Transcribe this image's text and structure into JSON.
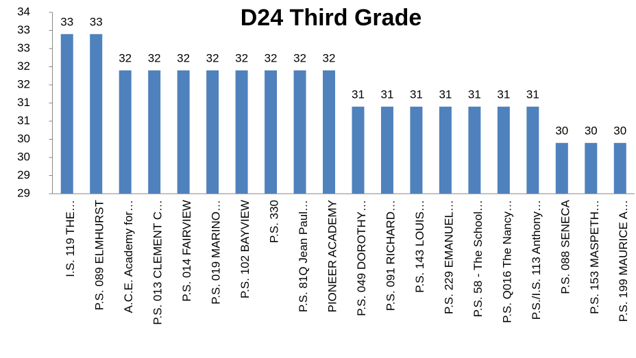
{
  "chart_data": {
    "type": "bar",
    "title": "D24 Third Grade",
    "categories": [
      "I.S. 119 THE…",
      "P.S. 089 ELMHURST",
      "A.C.E. Academy for…",
      "P.S. 013 CLEMENT C…",
      "P.S. 014 FAIRVIEW",
      "P.S. 019 MARINO…",
      "P.S. 102 BAYVIEW",
      "P.S. 330",
      "P.S. 81Q Jean Paul…",
      "PIONEER ACADEMY",
      "P.S. 049 DOROTHY…",
      "P.S. 091 RICHARD…",
      "P.S. 143 LOUIS…",
      "P.S. 229 EMANUEL…",
      "P.S. 58 - The School…",
      "P.S. Q016 The Nancy…",
      "P.S./I.S. 113 Anthony…",
      "P.S. 088 SENECA",
      "P.S. 153 MASPETH…",
      "P.S. 199 MAURICE A…"
    ],
    "values": [
      33.4,
      33.4,
      32.4,
      32.4,
      32.4,
      32.4,
      32.4,
      32.4,
      32.4,
      32.4,
      31.4,
      31.4,
      31.4,
      31.4,
      31.4,
      31.4,
      31.4,
      30.4,
      30.4,
      30.4
    ],
    "value_labels": [
      "33",
      "33",
      "32",
      "32",
      "32",
      "32",
      "32",
      "32",
      "32",
      "32",
      "31",
      "31",
      "31",
      "31",
      "31",
      "31",
      "31",
      "30",
      "30",
      "30"
    ],
    "color": "#4f81bd",
    "ylim": [
      29,
      34
    ],
    "yticks": [
      29,
      {
        "value": 29.5,
        "label": "29"
      },
      30,
      {
        "value": 30.5,
        "label": "30"
      },
      31,
      {
        "value": 31.5,
        "label": "31"
      },
      32,
      {
        "value": 32.5,
        "label": "32"
      },
      33,
      {
        "value": 33.5,
        "label": "33"
      },
      34
    ],
    "grid": false
  }
}
